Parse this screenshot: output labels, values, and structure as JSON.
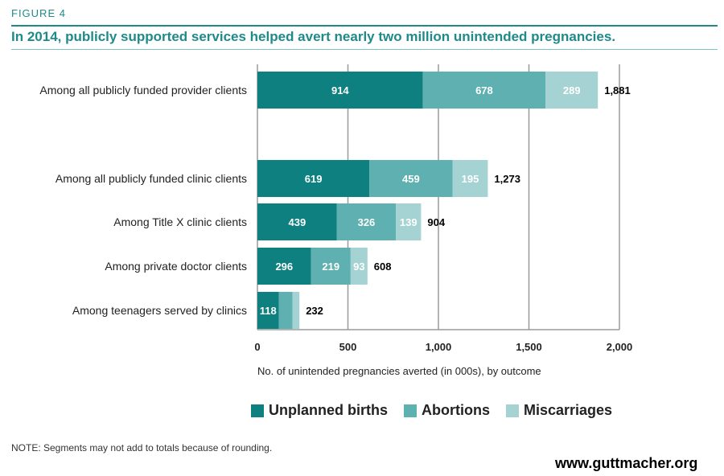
{
  "figure_label": "FIGURE 4",
  "title": "In 2014, publicly supported services helped avert nearly two million unintended pregnancies.",
  "note": "NOTE: Segments may not add to totals because of rounding.",
  "source": "www.guttmacher.org",
  "chart_data": {
    "type": "bar",
    "orientation": "horizontal",
    "stacked": true,
    "categories": [
      "Among all publicly funded provider clients",
      "Among all publicly funded clinic clients",
      "Among Title X clinic clients",
      "Among private doctor clients",
      "Among teenagers served by clinics"
    ],
    "series": [
      {
        "name": "Unplanned births",
        "values": [
          914,
          619,
          439,
          296,
          118
        ],
        "color": "#0f8080"
      },
      {
        "name": "Abortions",
        "values": [
          678,
          459,
          326,
          219,
          76
        ],
        "color": "#5fb0b0"
      },
      {
        "name": "Miscarriages",
        "values": [
          289,
          195,
          139,
          93,
          38
        ],
        "color": "#a5d2d2"
      }
    ],
    "segment_labels": [
      [
        "914",
        "678",
        "289"
      ],
      [
        "619",
        "459",
        "195"
      ],
      [
        "439",
        "326",
        "139"
      ],
      [
        "296",
        "219",
        "93"
      ],
      [
        "118",
        "",
        ""
      ]
    ],
    "totals": [
      1881,
      1273,
      904,
      608,
      232
    ],
    "total_labels": [
      "1,881",
      "1,273",
      "904",
      "608",
      "232"
    ],
    "xlabel": "No. of unintended pregnancies averted (in 000s), by outcome",
    "xlim": [
      0,
      2000
    ],
    "xticks": [
      0,
      500,
      1000,
      1500,
      2000
    ],
    "xtick_labels": [
      "0",
      "500",
      "1,000",
      "1,500",
      "2,000"
    ],
    "grid": true,
    "legend_position": "bottom"
  }
}
